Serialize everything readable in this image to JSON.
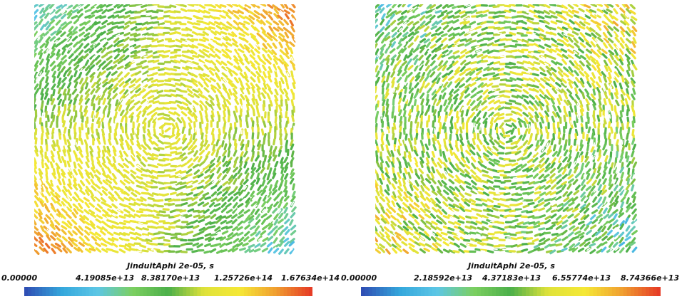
{
  "chart_data": [
    {
      "type": "heatmap",
      "colorbar": {
        "title": "JinduitAphi 2e-05, s",
        "ticks": [
          "0.00000",
          "4.19085e+13",
          "8.38170e+13",
          "1.25726e+14",
          "1.67634e+14"
        ],
        "range": [
          0,
          167634000000000.0
        ],
        "colormap": "blue-cyan-green-yellow-red"
      },
      "field": {
        "description_kind": "vector-glyph field",
        "pattern": "high values along top-right and bottom-left corners, low values at top-left and bottom-right corners",
        "relative_levels": {
          "top_left": 0.25,
          "top_right": 0.95,
          "bottom_left": 0.95,
          "bottom_right": 0.2,
          "center": 0.6
        }
      }
    },
    {
      "type": "heatmap",
      "colorbar": {
        "title": "JinduitAphi 2e-05, s",
        "ticks": [
          "0.00000",
          "2.18592e+13",
          "4.37183e+13",
          "6.55774e+13",
          "8.74366e+13"
        ],
        "range": [
          0,
          87436600000000.0
        ],
        "colormap": "blue-cyan-green-yellow-red"
      },
      "field": {
        "description_kind": "vector-glyph field",
        "pattern": "mostly green/yellow, warmer at top-right and bottom-left corners, cooler at top-left and bottom-right corners",
        "relative_levels": {
          "top_left": 0.35,
          "top_right": 0.75,
          "bottom_left": 0.75,
          "bottom_right": 0.3,
          "center": 0.55
        }
      }
    }
  ],
  "colors": {
    "colormap": [
      "#2f4fb4",
      "#35a7dc",
      "#5cc6e6",
      "#7ccf60",
      "#4caf4a",
      "#dfe23a",
      "#f5e836",
      "#f0a030",
      "#e63d26"
    ]
  }
}
